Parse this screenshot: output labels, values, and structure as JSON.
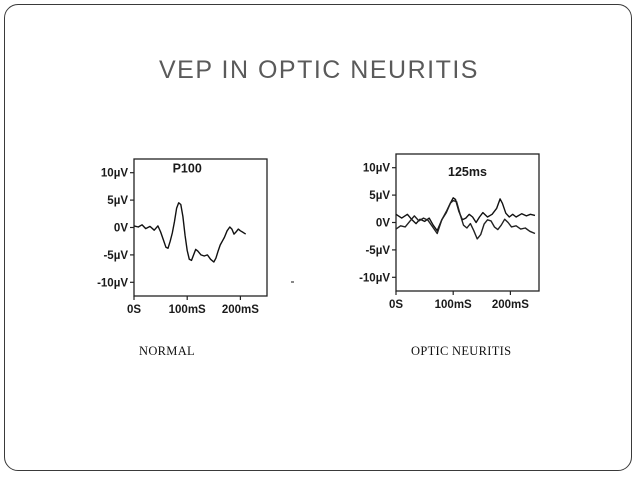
{
  "slide": {
    "title": "VEP IN OPTIC NEURITIS"
  },
  "captions": {
    "left": "NORMAL",
    "right": "OPTIC NEURITIS"
  },
  "chart_data": [
    {
      "type": "line",
      "title": "",
      "annotation": {
        "text": "P100",
        "x": 100,
        "y": 10
      },
      "xlabel": "",
      "ylabel": "",
      "xlim": [
        0,
        250
      ],
      "ylim": [
        -12.5,
        12.5
      ],
      "x_ticks": [
        0,
        100,
        200
      ],
      "x_tick_labels": [
        "0S",
        "100mS",
        "200mS"
      ],
      "y_ticks": [
        10,
        5,
        0,
        -5,
        -10
      ],
      "y_tick_labels": [
        "10µV",
        "5µV",
        "0V",
        "-5µV",
        "-10µV"
      ],
      "grid": false,
      "series": [
        {
          "color": "#111111",
          "points": [
            [
              0,
              0.3
            ],
            [
              8,
              0.1
            ],
            [
              15,
              0.5
            ],
            [
              22,
              -0.2
            ],
            [
              30,
              0.2
            ],
            [
              38,
              -0.5
            ],
            [
              45,
              0.3
            ],
            [
              50,
              -0.8
            ],
            [
              55,
              -2.2
            ],
            [
              60,
              -3.6
            ],
            [
              64,
              -3.8
            ],
            [
              68,
              -2.5
            ],
            [
              72,
              -1.0
            ],
            [
              76,
              1.0
            ],
            [
              80,
              3.5
            ],
            [
              84,
              4.5
            ],
            [
              88,
              4.2
            ],
            [
              92,
              2.0
            ],
            [
              96,
              -1.5
            ],
            [
              100,
              -4.2
            ],
            [
              104,
              -5.8
            ],
            [
              108,
              -6.0
            ],
            [
              112,
              -5.0
            ],
            [
              116,
              -4.0
            ],
            [
              120,
              -4.3
            ],
            [
              126,
              -5.0
            ],
            [
              132,
              -5.2
            ],
            [
              138,
              -5.0
            ],
            [
              144,
              -5.8
            ],
            [
              150,
              -6.3
            ],
            [
              154,
              -5.6
            ],
            [
              158,
              -4.3
            ],
            [
              162,
              -3.2
            ],
            [
              166,
              -2.5
            ],
            [
              170,
              -1.8
            ],
            [
              175,
              -0.6
            ],
            [
              180,
              0.1
            ],
            [
              184,
              -0.3
            ],
            [
              188,
              -1.2
            ],
            [
              192,
              -0.8
            ],
            [
              196,
              -0.3
            ],
            [
              200,
              -0.6
            ],
            [
              205,
              -0.9
            ],
            [
              210,
              -1.2
            ]
          ]
        }
      ]
    },
    {
      "type": "line",
      "title": "",
      "annotation": {
        "text": "125ms",
        "x": 125,
        "y": 8.5
      },
      "xlabel": "",
      "ylabel": "",
      "xlim": [
        0,
        250
      ],
      "ylim": [
        -12.5,
        12.5
      ],
      "x_ticks": [
        0,
        100,
        200
      ],
      "x_tick_labels": [
        "0S",
        "100mS",
        "200mS"
      ],
      "y_ticks": [
        10,
        5,
        0,
        -5,
        -10
      ],
      "y_tick_labels": [
        "10µV",
        "5µV",
        "0V",
        "-5µV",
        "-10µV"
      ],
      "grid": false,
      "series": [
        {
          "color": "#111111",
          "points": [
            [
              0,
              1.5
            ],
            [
              10,
              0.8
            ],
            [
              20,
              1.5
            ],
            [
              28,
              0.5
            ],
            [
              35,
              -0.2
            ],
            [
              42,
              0.6
            ],
            [
              50,
              0.2
            ],
            [
              58,
              0.8
            ],
            [
              65,
              -0.5
            ],
            [
              72,
              -1.5
            ],
            [
              80,
              0.5
            ],
            [
              88,
              1.8
            ],
            [
              95,
              3.5
            ],
            [
              100,
              4.5
            ],
            [
              104,
              4.2
            ],
            [
              110,
              2.0
            ],
            [
              116,
              0.5
            ],
            [
              122,
              0.8
            ],
            [
              128,
              1.5
            ],
            [
              134,
              1.0
            ],
            [
              140,
              0.0
            ],
            [
              146,
              1.0
            ],
            [
              152,
              1.8
            ],
            [
              160,
              1.0
            ],
            [
              168,
              1.5
            ],
            [
              176,
              2.6
            ],
            [
              182,
              4.3
            ],
            [
              186,
              3.5
            ],
            [
              192,
              1.7
            ],
            [
              198,
              1.0
            ],
            [
              204,
              1.5
            ],
            [
              210,
              1.0
            ],
            [
              220,
              1.6
            ],
            [
              228,
              1.2
            ],
            [
              235,
              1.5
            ],
            [
              243,
              1.3
            ]
          ]
        },
        {
          "color": "#222222",
          "points": [
            [
              0,
              -1.2
            ],
            [
              8,
              -0.6
            ],
            [
              16,
              -0.8
            ],
            [
              24,
              0.2
            ],
            [
              32,
              1.2
            ],
            [
              40,
              0.3
            ],
            [
              48,
              0.8
            ],
            [
              56,
              0.4
            ],
            [
              64,
              -0.8
            ],
            [
              72,
              -2.0
            ],
            [
              80,
              0.5
            ],
            [
              88,
              2.0
            ],
            [
              95,
              3.5
            ],
            [
              100,
              4.0
            ],
            [
              106,
              3.8
            ],
            [
              112,
              1.5
            ],
            [
              118,
              -0.5
            ],
            [
              124,
              -1.0
            ],
            [
              130,
              -0.2
            ],
            [
              136,
              -1.5
            ],
            [
              142,
              -3.0
            ],
            [
              148,
              -2.2
            ],
            [
              154,
              -0.3
            ],
            [
              160,
              0.5
            ],
            [
              166,
              0.3
            ],
            [
              172,
              -0.8
            ],
            [
              178,
              -1.3
            ],
            [
              184,
              -0.5
            ],
            [
              190,
              0.6
            ],
            [
              196,
              0.0
            ],
            [
              202,
              -0.8
            ],
            [
              210,
              -0.6
            ],
            [
              218,
              -1.2
            ],
            [
              226,
              -1.0
            ],
            [
              234,
              -1.6
            ],
            [
              243,
              -2.0
            ]
          ]
        }
      ]
    }
  ]
}
